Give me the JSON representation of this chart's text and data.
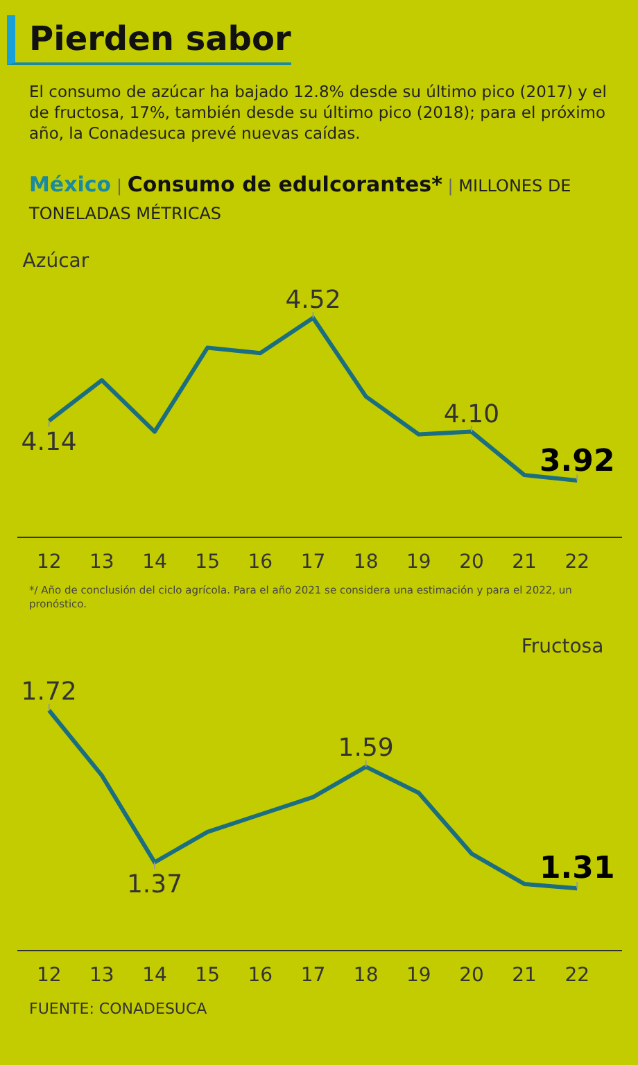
{
  "chart_data": [
    {
      "type": "line",
      "title": "Pierden sabor",
      "subtitle": "El consumo de azúcar ha bajado 12.8% desde su último pico (2017) y el de fructosa, 17%, también desde su último pico (2018); para el próximo año, la Conadesuca prevé nuevas caídas.",
      "annotations": [
        "México | Consumo de edulcorantes* | MILLONES DE TONELADAS MÉTRICAS",
        "*/ Año de conclusión del ciclo agrícola. Para el año 2021 se considera una estimación y para el 2022, un pronóstico."
      ],
      "categories": [
        "12",
        "13",
        "14",
        "15",
        "16",
        "17",
        "18",
        "19",
        "20",
        "21",
        "22"
      ],
      "tick_labels": "x",
      "grid": false,
      "legend": false,
      "marker": "none",
      "line_style": "solid",
      "series": [
        {
          "name": "Azúcar",
          "color": "#1a6e80",
          "values": [
            4.14,
            4.29,
            4.1,
            4.41,
            4.39,
            4.52,
            4.23,
            4.09,
            4.1,
            3.94,
            3.92
          ],
          "value_labels": [
            "4.14",
            null,
            null,
            null,
            null,
            "4.52",
            null,
            null,
            "4.10",
            null,
            "3.92"
          ]
        }
      ]
    },
    {
      "type": "line",
      "annotations": [
        "FUENTE: CONADESUCA"
      ],
      "categories": [
        "12",
        "13",
        "14",
        "15",
        "16",
        "17",
        "18",
        "19",
        "20",
        "21",
        "22"
      ],
      "tick_labels": "x",
      "grid": false,
      "legend": false,
      "marker": "none",
      "line_style": "solid",
      "series": [
        {
          "name": "Fructosa",
          "color": "#1a6e80",
          "values": [
            1.72,
            1.57,
            1.37,
            1.44,
            1.48,
            1.52,
            1.59,
            1.53,
            1.39,
            1.32,
            1.31
          ],
          "value_labels": [
            "1.72",
            null,
            "1.37",
            null,
            null,
            null,
            "1.59",
            null,
            null,
            null,
            "1.31"
          ]
        }
      ]
    }
  ]
}
